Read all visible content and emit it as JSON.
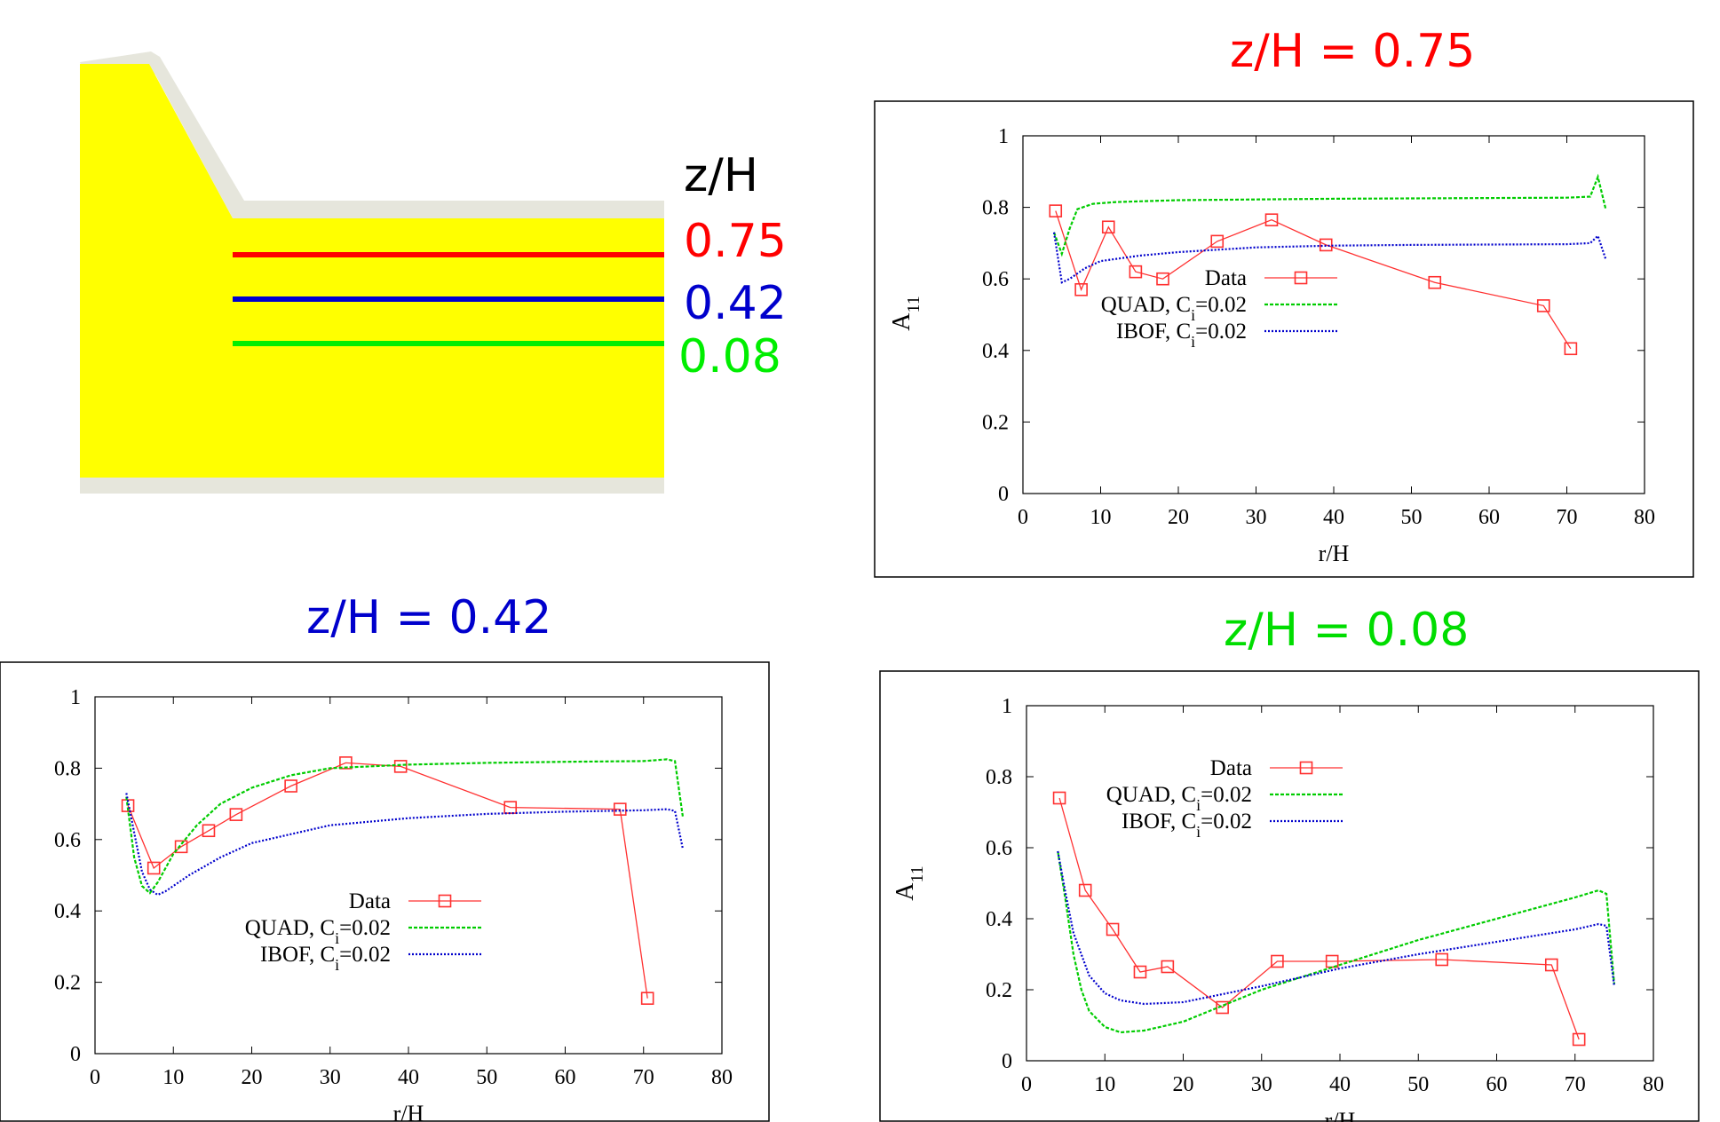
{
  "schematic": {
    "header": "z/H",
    "levels": [
      {
        "label": "0.75",
        "value": 0.75,
        "color": "#ff0000"
      },
      {
        "label": "0.42",
        "value": 0.42,
        "color": "#0000cc"
      },
      {
        "label": "0.08",
        "value": 0.08,
        "color": "#00ee00"
      }
    ],
    "fill_color": "#ffff00",
    "wall_color": "#e6e6dc"
  },
  "chart_data": [
    {
      "id": "z075",
      "type": "line",
      "title": "z/H = 0.75",
      "title_color": "#ff0000",
      "xlabel": "r/H",
      "ylabel": "A11",
      "xlim": [
        0,
        80
      ],
      "ylim": [
        0,
        1
      ],
      "xticks": [
        "0",
        "10",
        "20",
        "30",
        "40",
        "50",
        "60",
        "70",
        "80"
      ],
      "yticks": [
        "0",
        "0.2",
        "0.4",
        "0.6",
        "0.8",
        "1"
      ],
      "legend_position": "center-right",
      "series": [
        {
          "name": "Data",
          "style": "markers-line",
          "color": "#ff3030",
          "points": [
            [
              4.2,
              0.79
            ],
            [
              7.5,
              0.57
            ],
            [
              11,
              0.745
            ],
            [
              14.5,
              0.62
            ],
            [
              18,
              0.6
            ],
            [
              25,
              0.705
            ],
            [
              32,
              0.765
            ],
            [
              39,
              0.695
            ],
            [
              53,
              0.59
            ],
            [
              67,
              0.525
            ],
            [
              70.5,
              0.405
            ]
          ]
        },
        {
          "name": "QUAD, Ci=0.02",
          "style": "dashed",
          "color": "#00cc00",
          "points": [
            [
              4,
              0.73
            ],
            [
              5,
              0.67
            ],
            [
              6,
              0.74
            ],
            [
              7,
              0.795
            ],
            [
              9,
              0.81
            ],
            [
              12,
              0.815
            ],
            [
              20,
              0.82
            ],
            [
              30,
              0.822
            ],
            [
              40,
              0.824
            ],
            [
              50,
              0.825
            ],
            [
              60,
              0.826
            ],
            [
              70,
              0.827
            ],
            [
              73,
              0.83
            ],
            [
              74,
              0.885
            ],
            [
              75,
              0.795
            ]
          ]
        },
        {
          "name": "IBOF, Ci=0.02",
          "style": "dotted",
          "color": "#0000cc",
          "points": [
            [
              4,
              0.73
            ],
            [
              5,
              0.59
            ],
            [
              6,
              0.6
            ],
            [
              8,
              0.63
            ],
            [
              10,
              0.65
            ],
            [
              15,
              0.665
            ],
            [
              20,
              0.675
            ],
            [
              30,
              0.688
            ],
            [
              40,
              0.693
            ],
            [
              50,
              0.695
            ],
            [
              60,
              0.696
            ],
            [
              70,
              0.697
            ],
            [
              73,
              0.7
            ],
            [
              74,
              0.72
            ],
            [
              75,
              0.655
            ]
          ]
        }
      ]
    },
    {
      "id": "z042",
      "type": "line",
      "title": "z/H = 0.42",
      "title_color": "#0000cc",
      "xlabel": "r/H",
      "ylabel": "",
      "xlim": [
        0,
        80
      ],
      "ylim": [
        0,
        1
      ],
      "xticks": [
        "0",
        "10",
        "20",
        "30",
        "40",
        "50",
        "60",
        "70",
        "80"
      ],
      "yticks": [
        "0",
        "0.2",
        "0.4",
        "0.6",
        "0.8",
        "1"
      ],
      "legend_position": "bottom-center",
      "series": [
        {
          "name": "Data",
          "style": "markers-line",
          "color": "#ff3030",
          "points": [
            [
              4.2,
              0.695
            ],
            [
              7.5,
              0.52
            ],
            [
              11,
              0.58
            ],
            [
              14.5,
              0.625
            ],
            [
              18,
              0.67
            ],
            [
              25,
              0.75
            ],
            [
              32,
              0.815
            ],
            [
              39,
              0.805
            ],
            [
              53,
              0.69
            ],
            [
              67,
              0.685
            ],
            [
              70.5,
              0.155
            ]
          ]
        },
        {
          "name": "QUAD, Ci=0.02",
          "style": "dashed",
          "color": "#00cc00",
          "points": [
            [
              4,
              0.72
            ],
            [
              5,
              0.55
            ],
            [
              6,
              0.47
            ],
            [
              7,
              0.45
            ],
            [
              8,
              0.48
            ],
            [
              10,
              0.56
            ],
            [
              13,
              0.64
            ],
            [
              16,
              0.7
            ],
            [
              20,
              0.745
            ],
            [
              25,
              0.78
            ],
            [
              30,
              0.8
            ],
            [
              40,
              0.81
            ],
            [
              50,
              0.815
            ],
            [
              60,
              0.818
            ],
            [
              70,
              0.82
            ],
            [
              73,
              0.825
            ],
            [
              74,
              0.82
            ],
            [
              75,
              0.665
            ]
          ]
        },
        {
          "name": "IBOF, Ci=0.02",
          "style": "dotted",
          "color": "#0000cc",
          "points": [
            [
              4,
              0.73
            ],
            [
              5,
              0.62
            ],
            [
              6,
              0.51
            ],
            [
              7,
              0.46
            ],
            [
              8,
              0.445
            ],
            [
              9,
              0.455
            ],
            [
              12,
              0.5
            ],
            [
              16,
              0.55
            ],
            [
              20,
              0.59
            ],
            [
              30,
              0.64
            ],
            [
              40,
              0.66
            ],
            [
              50,
              0.672
            ],
            [
              60,
              0.678
            ],
            [
              70,
              0.682
            ],
            [
              73,
              0.685
            ],
            [
              74,
              0.68
            ],
            [
              75,
              0.575
            ]
          ]
        }
      ]
    },
    {
      "id": "z008",
      "type": "line",
      "title": "z/H = 0.08",
      "title_color": "#00dd00",
      "xlabel": "r/H",
      "ylabel": "A11",
      "xlim": [
        0,
        80
      ],
      "ylim": [
        0,
        1
      ],
      "xticks": [
        "0",
        "10",
        "20",
        "30",
        "40",
        "50",
        "60",
        "70",
        "80"
      ],
      "yticks": [
        "0",
        "0.2",
        "0.4",
        "0.6",
        "0.8",
        "1"
      ],
      "legend_position": "top-right",
      "series": [
        {
          "name": "Data",
          "style": "markers-line",
          "color": "#ff3030",
          "points": [
            [
              4.2,
              0.74
            ],
            [
              7.5,
              0.48
            ],
            [
              11,
              0.37
            ],
            [
              14.5,
              0.25
            ],
            [
              18,
              0.265
            ],
            [
              25,
              0.15
            ],
            [
              32,
              0.28
            ],
            [
              39,
              0.28
            ],
            [
              53,
              0.285
            ],
            [
              67,
              0.27
            ],
            [
              70.5,
              0.06
            ]
          ]
        },
        {
          "name": "QUAD, Ci=0.02",
          "style": "dashed",
          "color": "#00cc00",
          "points": [
            [
              4,
              0.59
            ],
            [
              5,
              0.45
            ],
            [
              6,
              0.3
            ],
            [
              7,
              0.2
            ],
            [
              8,
              0.14
            ],
            [
              10,
              0.095
            ],
            [
              12,
              0.08
            ],
            [
              15,
              0.085
            ],
            [
              20,
              0.11
            ],
            [
              30,
              0.2
            ],
            [
              40,
              0.27
            ],
            [
              50,
              0.34
            ],
            [
              60,
              0.4
            ],
            [
              70,
              0.46
            ],
            [
              73,
              0.48
            ],
            [
              74,
              0.47
            ],
            [
              75,
              0.215
            ]
          ]
        },
        {
          "name": "IBOF, Ci=0.02",
          "style": "dotted",
          "color": "#0000cc",
          "points": [
            [
              4,
              0.59
            ],
            [
              5,
              0.47
            ],
            [
              6,
              0.36
            ],
            [
              8,
              0.24
            ],
            [
              10,
              0.19
            ],
            [
              12,
              0.17
            ],
            [
              15,
              0.16
            ],
            [
              20,
              0.165
            ],
            [
              30,
              0.21
            ],
            [
              40,
              0.26
            ],
            [
              50,
              0.3
            ],
            [
              60,
              0.335
            ],
            [
              70,
              0.37
            ],
            [
              73,
              0.385
            ],
            [
              74,
              0.38
            ],
            [
              75,
              0.21
            ]
          ]
        }
      ]
    }
  ]
}
